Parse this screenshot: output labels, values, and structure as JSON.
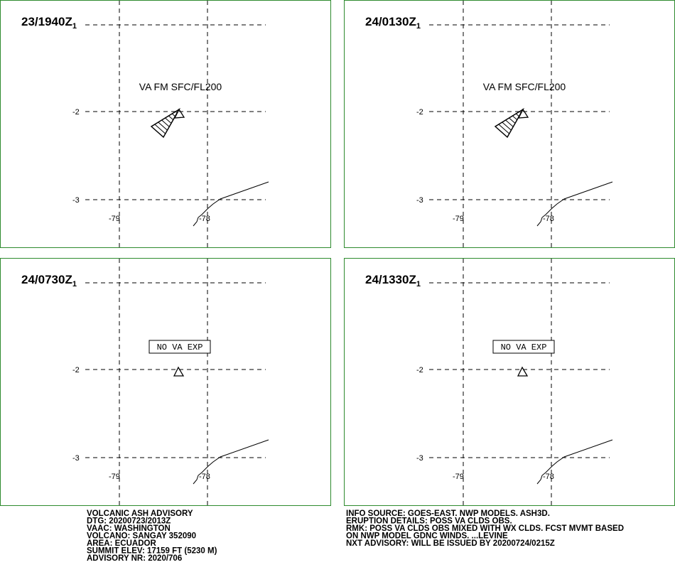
{
  "panels": [
    {
      "time": "23/1940Z",
      "sub": "1",
      "label": "VA FM SFC/FL200"
    },
    {
      "time": "24/0130Z",
      "sub": "1",
      "label": "VA FM SFC/FL200"
    },
    {
      "time": "24/0730Z",
      "sub": "1",
      "label": "NO VA EXP"
    },
    {
      "time": "24/1330Z",
      "sub": "1",
      "label": "NO VA EXP"
    }
  ],
  "axes": {
    "lat_labels": [
      "-2",
      "-3"
    ],
    "lon_labels": [
      "-79",
      "-78"
    ]
  },
  "advisory_left": [
    "VOLCANIC ASH ADVISORY",
    "DTG: 20200723/2013Z",
    "VAAC: WASHINGTON",
    "VOLCANO: SANGAY 352090",
    "AREA: ECUADOR",
    "SUMMIT ELEV: 17159 FT (5230 M)",
    "ADVISORY NR: 2020/706"
  ],
  "advisory_right": [
    "INFO SOURCE: GOES-EAST. NWP MODELS. ASH3D.",
    "ERUPTION DETAILS: POSS VA CLDS OBS.",
    "RMK: POSS VA CLDS OBS MIXED WITH WX CLDS. FCST MVMT BASED",
    "ON NWP MODEL GDNC WINDS. ...LEVINE",
    "NXT ADVISORY: WILL BE ISSUED BY 20200724/0215Z"
  ]
}
